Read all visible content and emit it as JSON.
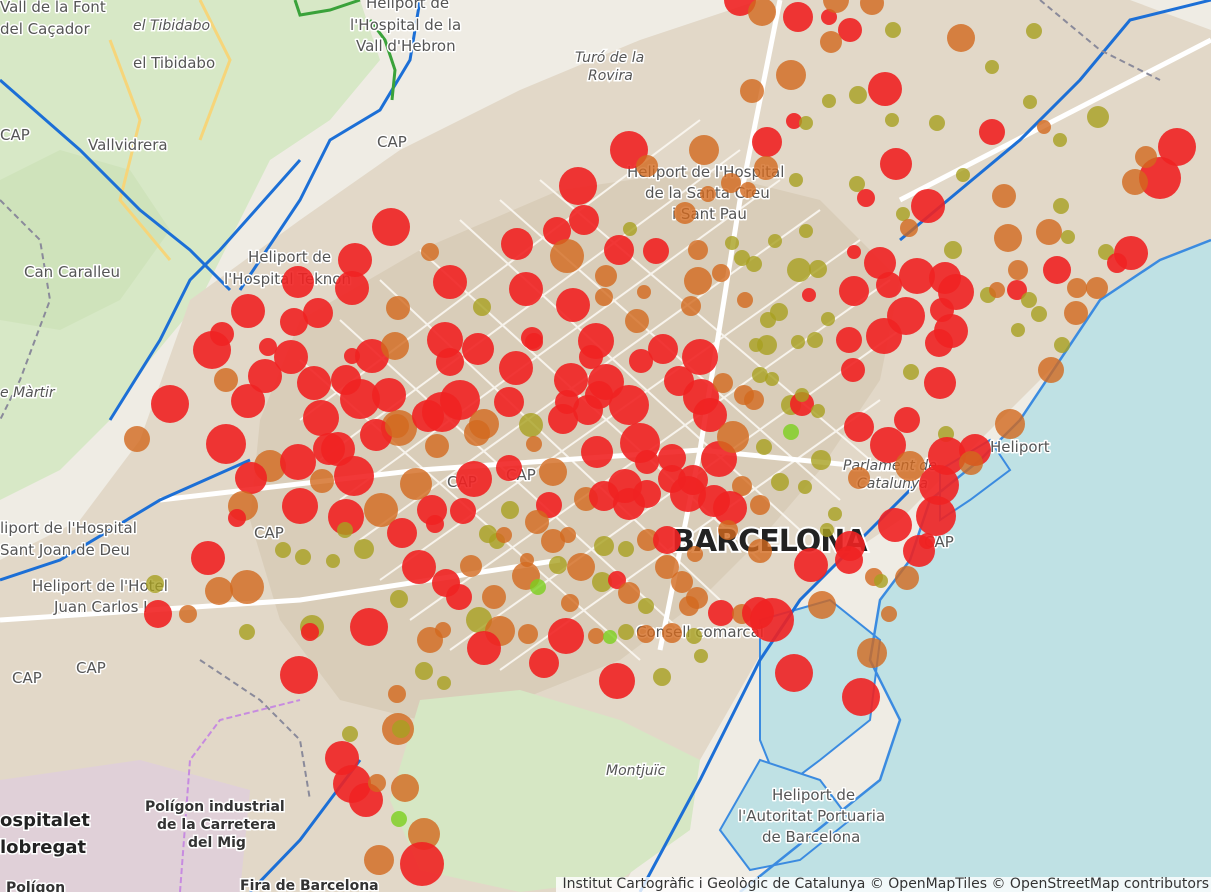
{
  "map": {
    "place_labels": [
      {
        "id": "vall-font",
        "text": "Vall de la Font"
      },
      {
        "id": "cacador",
        "text": "del Caçador"
      },
      {
        "id": "tibidabo-it",
        "text": "el Tibidabo"
      },
      {
        "id": "tibidabo",
        "text": "el Tibidabo"
      },
      {
        "id": "vallvidrera",
        "text": "Vallvidrera"
      },
      {
        "id": "can-caralleu",
        "text": "Can Caralleu"
      },
      {
        "id": "sant-marti",
        "text": "e Màrtir"
      },
      {
        "id": "hosp-hebron-1",
        "text": "Heliport de"
      },
      {
        "id": "hosp-hebron-2",
        "text": "l'Hospital de la"
      },
      {
        "id": "hosp-hebron-3",
        "text": "Vall d'Hebron"
      },
      {
        "id": "turo-1",
        "text": "Turó de la"
      },
      {
        "id": "turo-2",
        "text": "Rovira"
      },
      {
        "id": "santpau-1",
        "text": "Heliport de l'Hospital"
      },
      {
        "id": "santpau-2",
        "text": "de la Santa Creu"
      },
      {
        "id": "santpau-3",
        "text": "i Sant Pau"
      },
      {
        "id": "teknon-1",
        "text": "Heliport de"
      },
      {
        "id": "teknon-2",
        "text": "l'Hospital Teknon"
      },
      {
        "id": "sjd-1",
        "text": "liport de l'Hospital"
      },
      {
        "id": "sjd-2",
        "text": "Sant Joan de Deu"
      },
      {
        "id": "hotel-1",
        "text": "Heliport de l'Hotel"
      },
      {
        "id": "hotel-2",
        "text": "Juan Carlos I"
      },
      {
        "id": "cap-1",
        "text": "CAP"
      },
      {
        "id": "cap-2",
        "text": "CAP"
      },
      {
        "id": "cap-3",
        "text": "CAP"
      },
      {
        "id": "cap-4",
        "text": "CAP"
      },
      {
        "id": "cap-5",
        "text": "CAP"
      },
      {
        "id": "cap-6",
        "text": "CAP"
      },
      {
        "id": "cap-7",
        "text": "CAP"
      },
      {
        "id": "cap-8",
        "text": "CAP"
      },
      {
        "id": "barcelona",
        "text": "BARCELONA"
      },
      {
        "id": "parlament-1",
        "text": "Parlament de"
      },
      {
        "id": "parlament-2",
        "text": "Catalunya"
      },
      {
        "id": "heliport",
        "text": "Heliport"
      },
      {
        "id": "consell",
        "text": "Consell comarcal"
      },
      {
        "id": "montjuic",
        "text": "Montjuïc"
      },
      {
        "id": "port-1",
        "text": "Heliport de"
      },
      {
        "id": "port-2",
        "text": "l'Autoritat Portuaria"
      },
      {
        "id": "port-3",
        "text": "de Barcelona"
      },
      {
        "id": "poligon-1",
        "text": "Polígon industrial"
      },
      {
        "id": "poligon-2",
        "text": "de la Carretera"
      },
      {
        "id": "poligon-3",
        "text": "del Mig"
      },
      {
        "id": "hospitalet-1",
        "text": "ospitalet"
      },
      {
        "id": "hospitalet-2",
        "text": "lobregat"
      },
      {
        "id": "poligon-b",
        "text": "Polígon"
      },
      {
        "id": "fira",
        "text": "Fira de Barcelona"
      }
    ]
  },
  "attribution": "Institut Cartogràfic i Geològic de Catalunya © OpenMapTiles © OpenStreetMap contributors",
  "colors": {
    "sea": "#bfe1e4",
    "park": "#dcebc9",
    "urban": "#ddd3c3",
    "road": "#ffffff",
    "rail": "#1c6fd6",
    "marker_red": "#f02222",
    "marker_orange": "#d2691e",
    "marker_olive": "#a8a020",
    "marker_green": "#7ccf1e"
  }
}
